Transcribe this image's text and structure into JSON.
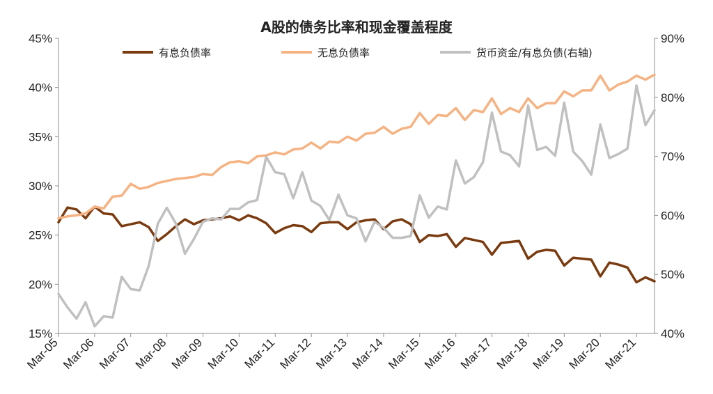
{
  "chart_data": {
    "type": "line",
    "title": "A股的债务比率和现金覆盖程度",
    "x_labels": [
      "Mar-05",
      "Mar-06",
      "Mar-07",
      "Mar-08",
      "Mar-09",
      "Mar-10",
      "Mar-11",
      "Mar-12",
      "Mar-13",
      "Mar-14",
      "Mar-15",
      "Mar-16",
      "Mar-17",
      "Mar-18",
      "Mar-19",
      "Mar-20",
      "Mar-21"
    ],
    "quarters_per_label": 4,
    "y_left": {
      "min": 15,
      "max": 45,
      "step": 5,
      "ticks": [
        "15%",
        "20%",
        "25%",
        "30%",
        "35%",
        "40%",
        "45%"
      ]
    },
    "y_right": {
      "min": 40,
      "max": 90,
      "step": 10,
      "ticks": [
        "40%",
        "50%",
        "60%",
        "70%",
        "80%",
        "90%"
      ]
    },
    "series": [
      {
        "name": "有息负债率",
        "axis": "left",
        "color": "#7a3b10",
        "values": [
          26.3,
          27.8,
          27.6,
          26.7,
          27.9,
          27.2,
          27.1,
          25.9,
          26.1,
          26.3,
          25.8,
          24.4,
          25.1,
          25.9,
          26.6,
          26.1,
          26.5,
          26.6,
          26.7,
          26.9,
          26.5,
          27.0,
          26.7,
          26.2,
          25.2,
          25.7,
          26.0,
          25.9,
          25.3,
          26.2,
          26.3,
          26.3,
          25.6,
          26.3,
          26.5,
          26.6,
          25.6,
          26.4,
          26.6,
          26.1,
          24.3,
          25.0,
          24.9,
          25.1,
          23.8,
          24.7,
          24.5,
          24.3,
          23.0,
          24.2,
          24.3,
          24.4,
          22.6,
          23.3,
          23.5,
          23.4,
          21.9,
          22.7,
          22.6,
          22.5,
          20.8,
          22.2,
          22.0,
          21.7,
          20.2,
          20.7,
          20.3
        ]
      },
      {
        "name": "无息负债率",
        "axis": "left",
        "color": "#f5b383",
        "values": [
          26.7,
          26.9,
          27.0,
          27.2,
          27.9,
          27.7,
          28.9,
          29.0,
          30.2,
          29.7,
          29.9,
          30.3,
          30.5,
          30.7,
          30.8,
          30.9,
          31.2,
          31.1,
          31.9,
          32.4,
          32.5,
          32.3,
          33.0,
          33.1,
          33.4,
          33.2,
          33.7,
          33.8,
          34.4,
          33.8,
          34.5,
          34.4,
          35.0,
          34.6,
          35.3,
          35.4,
          36.0,
          35.3,
          35.8,
          36.0,
          37.4,
          36.3,
          37.2,
          37.1,
          37.9,
          36.7,
          37.7,
          37.5,
          38.9,
          37.3,
          37.9,
          37.5,
          38.9,
          37.9,
          38.4,
          38.4,
          39.6,
          39.1,
          39.7,
          39.7,
          41.2,
          39.7,
          40.3,
          40.6,
          41.2,
          40.8,
          41.3
        ]
      },
      {
        "name": "货币资金/有息负债(右轴)",
        "axis": "right",
        "color": "#c0c0c0",
        "values": [
          46.7,
          44.4,
          42.5,
          45.3,
          41.2,
          42.9,
          42.7,
          49.6,
          47.5,
          47.3,
          51.5,
          58.6,
          61.3,
          58.6,
          53.5,
          56.0,
          58.9,
          59.5,
          59.3,
          61.1,
          61.1,
          62.2,
          62.6,
          69.9,
          67.3,
          67.0,
          62.9,
          67.3,
          62.5,
          61.6,
          59.2,
          63.5,
          60.0,
          59.5,
          55.6,
          58.9,
          57.9,
          56.2,
          56.2,
          56.5,
          63.4,
          59.6,
          61.5,
          61.0,
          69.3,
          65.4,
          66.5,
          69.0,
          77.4,
          70.8,
          70.2,
          68.3,
          78.6,
          71.1,
          71.6,
          70.1,
          79.1,
          70.8,
          69.2,
          66.9,
          75.4,
          69.7,
          70.4,
          71.3,
          82.0,
          75.3,
          77.8
        ]
      }
    ],
    "legend_position": "top",
    "grid": false
  }
}
